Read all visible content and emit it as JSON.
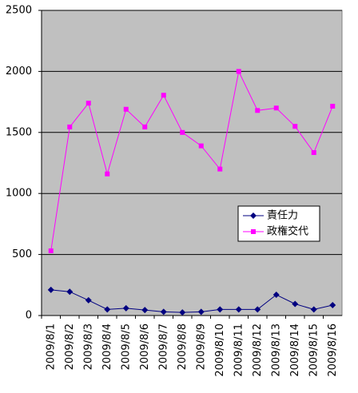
{
  "chart_data": {
    "type": "line",
    "categories": [
      "2009/8/1",
      "2009/8/2",
      "2009/8/3",
      "2009/8/4",
      "2009/8/5",
      "2009/8/6",
      "2009/8/7",
      "2009/8/8",
      "2009/8/9",
      "2009/8/10",
      "2009/8/11",
      "2009/8/12",
      "2009/8/13",
      "2009/8/14",
      "2009/8/15",
      "2009/8/16"
    ],
    "series": [
      {
        "name": "責任力",
        "color": "#000080",
        "marker": "diamond",
        "values": [
          210,
          195,
          125,
          50,
          60,
          45,
          30,
          25,
          30,
          50,
          50,
          50,
          170,
          95,
          50,
          85
        ]
      },
      {
        "name": "政権交代",
        "color": "#ff00ff",
        "marker": "square",
        "values": [
          530,
          1545,
          1740,
          1160,
          1690,
          1545,
          1805,
          1500,
          1390,
          1200,
          2000,
          1680,
          1700,
          1550,
          1335,
          1715
        ]
      }
    ],
    "ylim": [
      0,
      2500
    ],
    "yticks": [
      0,
      500,
      1000,
      1500,
      2000,
      2500
    ],
    "grid": true,
    "legend": "right",
    "plot_background": "#c0c0c0"
  }
}
